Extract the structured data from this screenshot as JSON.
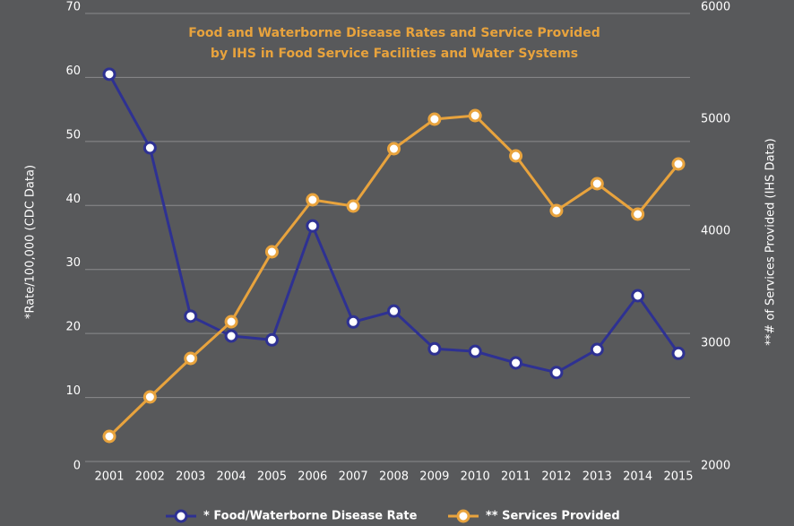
{
  "chart_data": {
    "type": "line",
    "title": [
      "Food and Waterborne Disease Rates and Service Provided",
      "by IHS in Food Service Facilities and Water Systems"
    ],
    "ylabel": "*Rate/100,000 (CDC Data)",
    "y2label": "**# of Services Provided (IHS Data)",
    "categories": [
      "2001",
      "2002",
      "2003",
      "2004",
      "2005",
      "2006",
      "2007",
      "2008",
      "2009",
      "2010",
      "2011",
      "2012",
      "2013",
      "2014",
      "2015"
    ],
    "series": [
      {
        "name": "* Food/Waterborne Disease Rate",
        "color": "#2e3192",
        "axis": "y",
        "values": [
          60.5,
          49,
          22.7,
          19.6,
          19,
          36.8,
          21.8,
          23.5,
          17.6,
          17.2,
          15.4,
          13.9,
          17.5,
          25.9,
          16.9
        ]
      },
      {
        "name": "** Services Provided",
        "color": "#e8a33d",
        "axis": "y2",
        "values": [
          2224,
          2576,
          2920,
          3248,
          3872,
          4336,
          4280,
          4792,
          5056,
          5088,
          4728,
          4240,
          4480,
          4208,
          4656
        ]
      }
    ],
    "ylim": [
      0,
      70
    ],
    "yticks": [
      0,
      10,
      20,
      30,
      40,
      50,
      60,
      70
    ],
    "y2lim": [
      2000,
      6000
    ],
    "y2ticks": [
      2000,
      3000,
      4000,
      5000,
      6000
    ],
    "grid": true,
    "legend": "bottom"
  }
}
